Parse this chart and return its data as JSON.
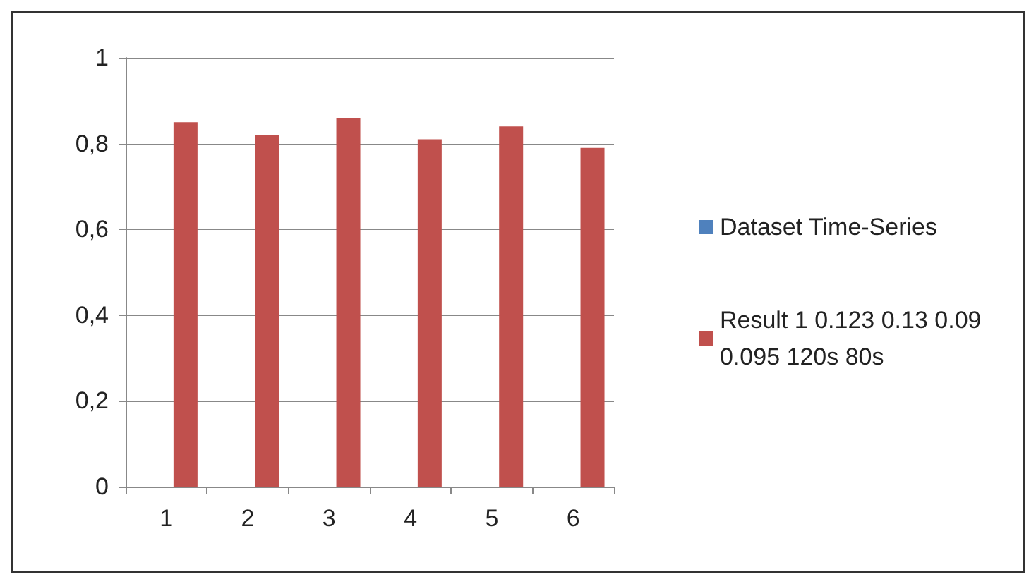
{
  "chart_data": {
    "type": "bar",
    "categories": [
      "1",
      "2",
      "3",
      "4",
      "5",
      "6"
    ],
    "series": [
      {
        "name": "Dataset Time-Series",
        "color": "#4f81bd",
        "values": [
          null,
          null,
          null,
          null,
          null,
          null
        ]
      },
      {
        "name": "Result 1 0.123 0.13 0.09 0.095 120s 80s",
        "color": "#c0504d",
        "values": [
          0.85,
          0.82,
          0.86,
          0.81,
          0.84,
          0.79
        ]
      }
    ],
    "ylim": [
      0,
      1
    ],
    "yticks": [
      {
        "value": 0,
        "label": "0"
      },
      {
        "value": 0.2,
        "label": "0,2"
      },
      {
        "value": 0.4,
        "label": "0,4"
      },
      {
        "value": 0.6,
        "label": "0,6"
      },
      {
        "value": 0.8,
        "label": "0,8"
      },
      {
        "value": 1,
        "label": "1"
      }
    ],
    "grid": "y",
    "legend": "right"
  }
}
